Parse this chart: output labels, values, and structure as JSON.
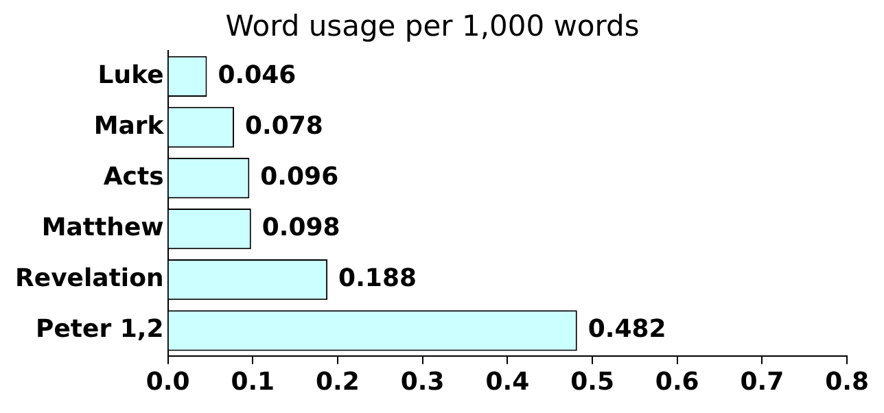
{
  "chart_data": {
    "type": "bar",
    "orientation": "horizontal",
    "title": "Word usage per 1,000 words",
    "categories": [
      "Luke",
      "Mark",
      "Acts",
      "Matthew",
      "Revelation",
      "Peter 1,2"
    ],
    "values": [
      0.046,
      0.078,
      0.096,
      0.098,
      0.188,
      0.482
    ],
    "color": "#ccffff",
    "xlim": [
      0,
      0.8
    ],
    "xticks": [
      {
        "value": 0,
        "label": "0.0"
      },
      {
        "value": 0.1,
        "label": "0.1"
      },
      {
        "value": 0.2,
        "label": "0.2"
      },
      {
        "value": 0.3,
        "label": "0.3"
      },
      {
        "value": 0.4,
        "label": "0.4"
      },
      {
        "value": 0.5,
        "label": "0.5"
      },
      {
        "value": 0.6,
        "label": "0.6"
      },
      {
        "value": 0.7,
        "label": "0.7"
      },
      {
        "value": 0.8,
        "label": "0.8"
      }
    ],
    "data_labels": true,
    "grid": false
  }
}
